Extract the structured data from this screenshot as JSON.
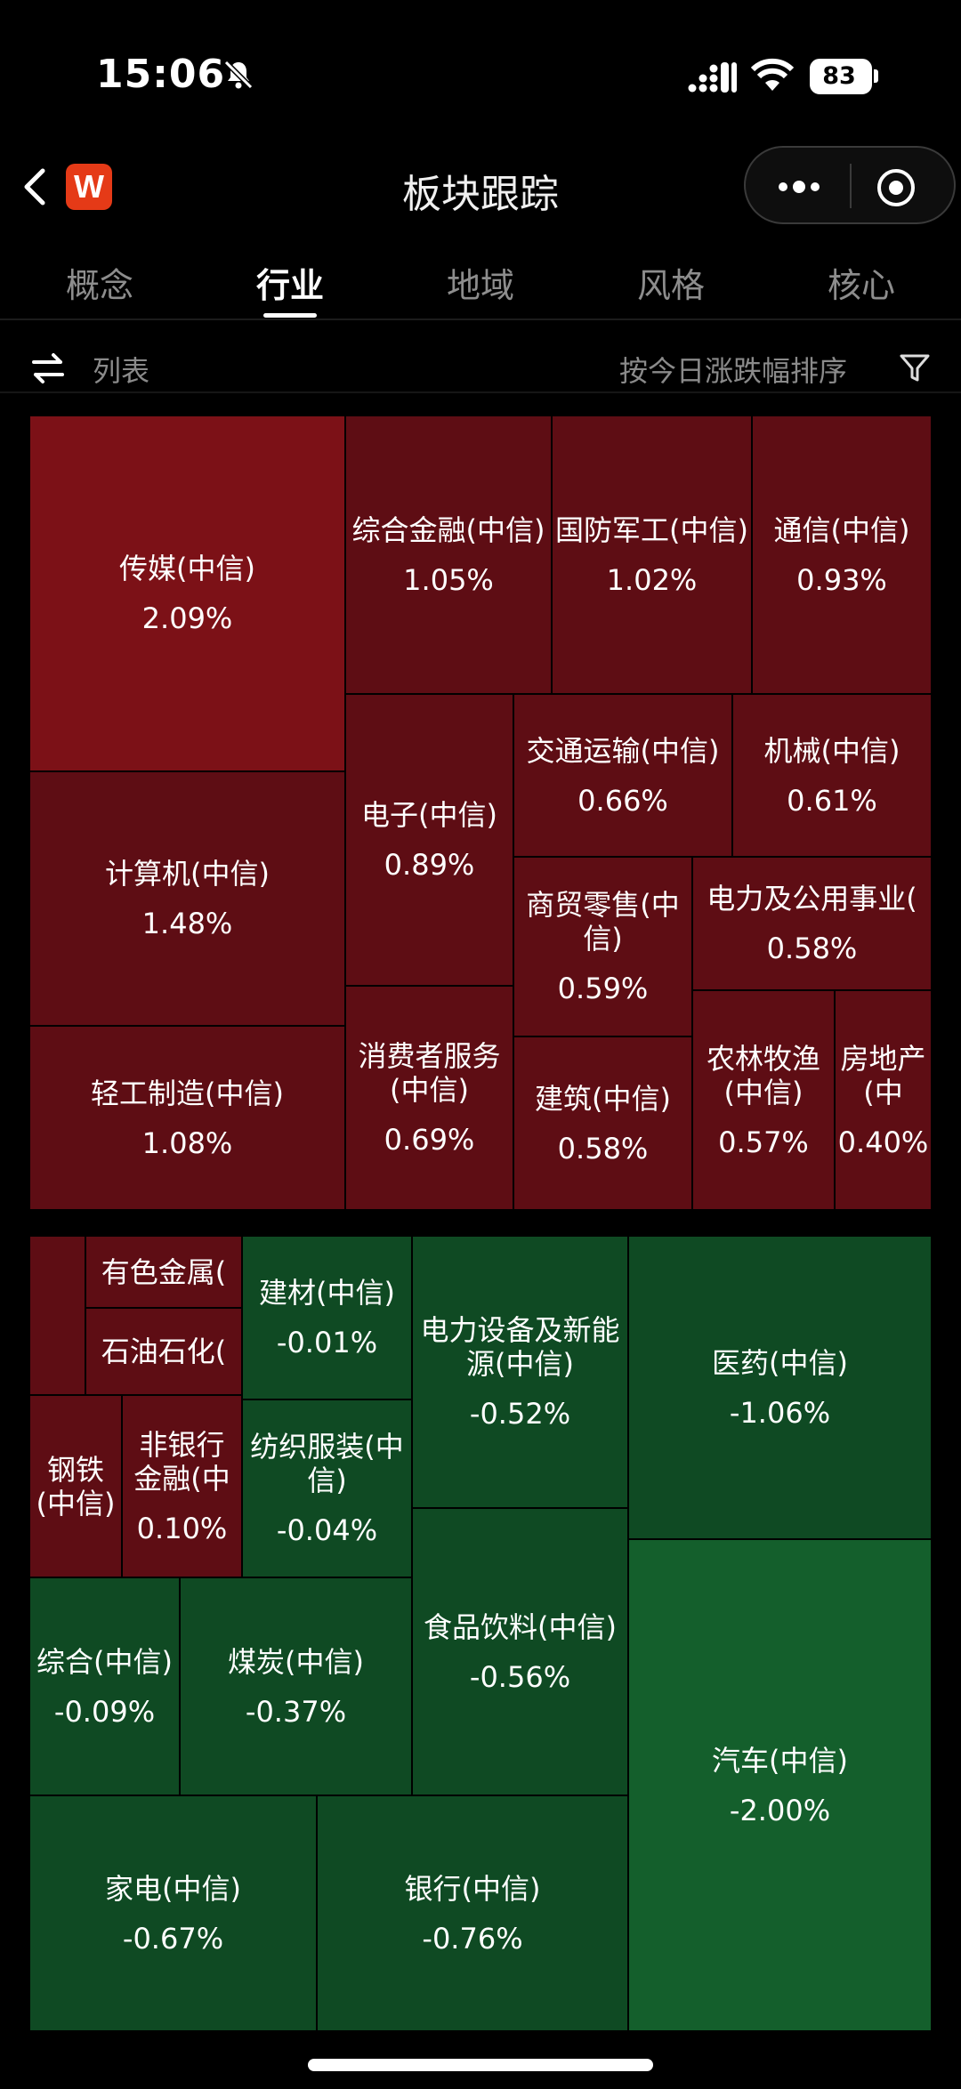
{
  "status_bar": {
    "time": "15:06",
    "battery": "83"
  },
  "nav": {
    "title": "板块跟踪",
    "logo_text": "W"
  },
  "tabs": [
    {
      "label": "概念"
    },
    {
      "label": "行业"
    },
    {
      "label": "地域"
    },
    {
      "label": "风格"
    },
    {
      "label": "核心"
    }
  ],
  "toolbar": {
    "list_label": "列表",
    "sort_label": "按今日涨跌幅排序"
  },
  "colors": {
    "up_strong": "#7c1117",
    "up": "#5e0d14",
    "down": "#0f4a23",
    "down_strong": "#145f2c"
  },
  "sectors": [
    {
      "name": "传媒(中信)",
      "pct": "2.09%"
    },
    {
      "name": "综合金融(中信)",
      "pct": "1.05%"
    },
    {
      "name": "国防军工(中信)",
      "pct": "1.02%"
    },
    {
      "name": "通信(中信)",
      "pct": "0.93%"
    },
    {
      "name": "计算机(中信)",
      "pct": "1.48%"
    },
    {
      "name": "电子(中信)",
      "pct": "0.89%"
    },
    {
      "name": "交通运输(中信)",
      "pct": "0.66%"
    },
    {
      "name": "机械(中信)",
      "pct": "0.61%"
    },
    {
      "name": "商贸零售(中信)",
      "pct": "0.59%"
    },
    {
      "name": "电力及公用事业(",
      "pct": "0.58%"
    },
    {
      "name": "轻工制造(中信)",
      "pct": "1.08%"
    },
    {
      "name": "消费者服务(中信)",
      "pct": "0.69%"
    },
    {
      "name": "建筑(中信)",
      "pct": "0.58%"
    },
    {
      "name": "农林牧渔(中信)",
      "pct": "0.57%"
    },
    {
      "name": "房地产(中",
      "pct": "0.40%"
    },
    {
      "name": "",
      "pct": ""
    },
    {
      "name": "有色金属(",
      "pct": ""
    },
    {
      "name": "石油石化(",
      "pct": ""
    },
    {
      "name": "建材(中信)",
      "pct": "-0.01%"
    },
    {
      "name": "电力设备及新能源(中信)",
      "pct": "-0.52%"
    },
    {
      "name": "医药(中信)",
      "pct": "-1.06%"
    },
    {
      "name": "钢铁(中信)",
      "pct": ""
    },
    {
      "name": "非银行金融(中",
      "pct": "0.10%"
    },
    {
      "name": "纺织服装(中信)",
      "pct": "-0.04%"
    },
    {
      "name": "食品饮料(中信)",
      "pct": "-0.56%"
    },
    {
      "name": "综合(中信)",
      "pct": "-0.09%"
    },
    {
      "name": "煤炭(中信)",
      "pct": "-0.37%"
    },
    {
      "name": "汽车(中信)",
      "pct": "-2.00%"
    },
    {
      "name": "家电(中信)",
      "pct": "-0.67%"
    },
    {
      "name": "银行(中信)",
      "pct": "-0.76%"
    }
  ]
}
